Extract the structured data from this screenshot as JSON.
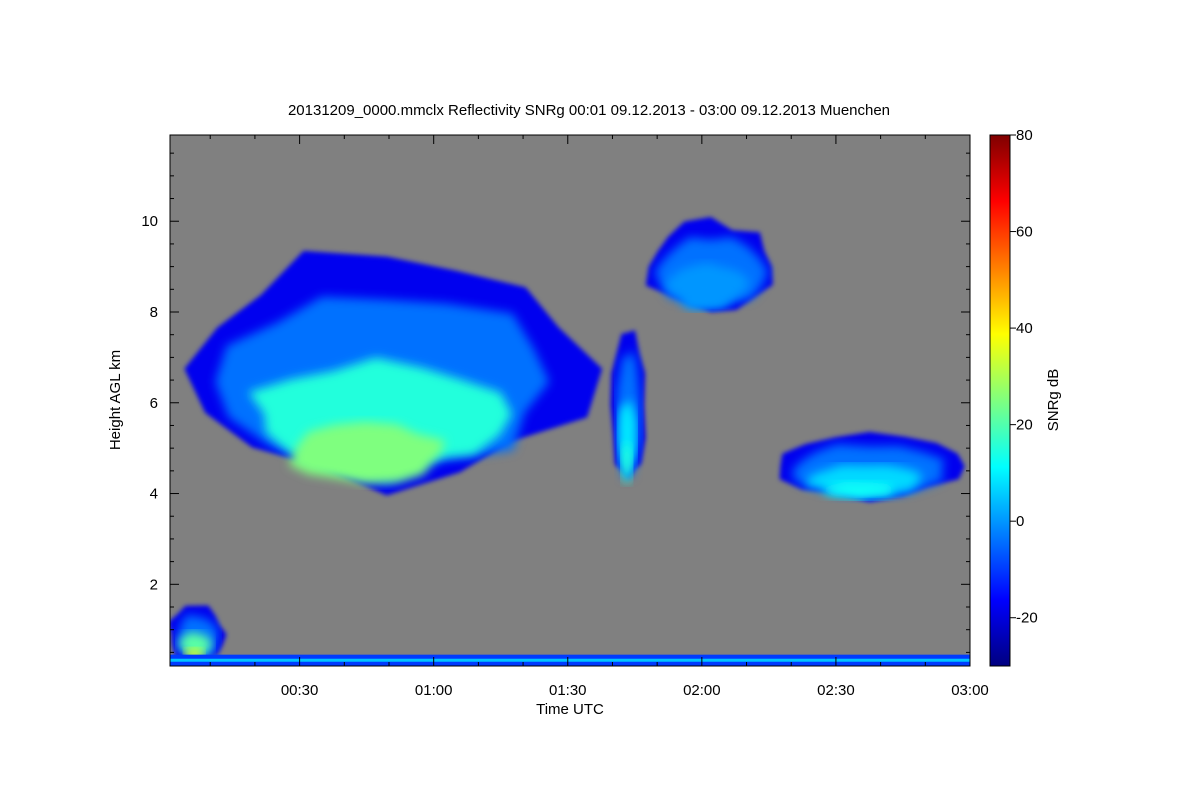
{
  "chart_data": {
    "type": "heatmap",
    "title": "20131209_0000.mmclx Reflectivity SNRg   00:01 09.12.2013 - 03:00 09.12.2013 Muenchen",
    "xlabel": "Time UTC",
    "ylabel": "Height AGL km",
    "xlim_minutes": [
      1,
      180
    ],
    "ylim_km": [
      0.2,
      11.9
    ],
    "x_ticks": [
      "00:30",
      "01:00",
      "01:30",
      "02:00",
      "02:30",
      "03:00"
    ],
    "y_ticks": [
      "2",
      "4",
      "6",
      "8",
      "10"
    ],
    "colorbar": {
      "label": "SNRg dB",
      "range": [
        -30,
        80
      ],
      "ticks": [
        "-20",
        "0",
        "20",
        "40",
        "60",
        "80"
      ],
      "colormap": [
        "#00007f",
        "#0000ff",
        "#007fff",
        "#00ffff",
        "#7fff7f",
        "#ffff00",
        "#ff7f00",
        "#ff0000",
        "#7f0000"
      ]
    },
    "background_color": "#808080",
    "features": [
      {
        "name": "main cloud layer",
        "t_start": "00:01",
        "t_end": "01:38",
        "base_km": 3.9,
        "top_km": 9.6,
        "peak_snr_db": 25
      },
      {
        "name": "virga column",
        "t_start": "01:40",
        "t_end": "01:47",
        "base_km": 4.0,
        "top_km": 7.9,
        "peak_snr_db": 15
      },
      {
        "name": "upper cloud patch",
        "t_start": "01:47",
        "t_end": "02:17",
        "base_km": 7.9,
        "top_km": 10.1,
        "peak_snr_db": 0
      },
      {
        "name": "mid-level cloud",
        "t_start": "02:15",
        "t_end": "03:00",
        "base_km": 3.8,
        "top_km": 5.4,
        "peak_snr_db": 12
      },
      {
        "name": "low precip streak",
        "t_start": "00:01",
        "t_end": "00:13",
        "base_km": 0.2,
        "top_km": 1.6,
        "peak_snr_db": 35
      }
    ]
  }
}
